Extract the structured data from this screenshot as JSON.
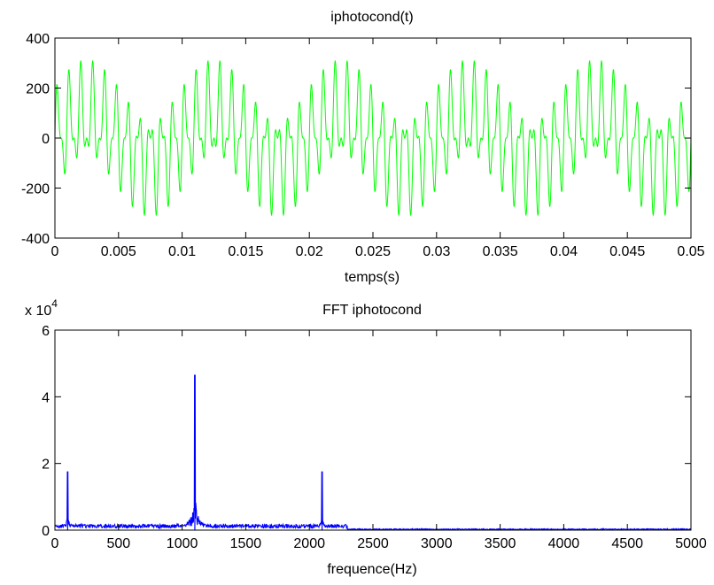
{
  "chart_data": [
    {
      "type": "line",
      "title": "iphotocond(t)",
      "xlabel": "temps(s)",
      "ylabel": "",
      "xlim": [
        0,
        0.05
      ],
      "ylim": [
        -400,
        400
      ],
      "xticks": [
        "0",
        "0.005",
        "0.01",
        "0.015",
        "0.02",
        "0.025",
        "0.03",
        "0.035",
        "0.04",
        "0.045",
        "0.05"
      ],
      "yticks": [
        "400",
        "200",
        "0",
        "-200",
        "-400"
      ],
      "line_color": "#00ff00",
      "grid": false,
      "series": [
        {
          "components": [
            {
              "frequency_hz": 100,
              "amplitude": 100
            },
            {
              "frequency_hz": 1100,
              "amplitude": 200
            },
            {
              "frequency_hz": 2100,
              "amplitude": 100
            }
          ],
          "x_range": [
            0,
            0.05
          ],
          "y_peak": 310
        }
      ]
    },
    {
      "type": "line",
      "title": "FFT iphotocond",
      "xlabel": "frequence(Hz)",
      "ylabel": "",
      "scale_label": "x 10",
      "scale_exponent": "4",
      "xlim": [
        0,
        5000
      ],
      "ylim": [
        0,
        6
      ],
      "xticks": [
        "0",
        "500",
        "1000",
        "1500",
        "2000",
        "2500",
        "3000",
        "3500",
        "4000",
        "4500",
        "5000"
      ],
      "yticks": [
        "6",
        "4",
        "2",
        "0"
      ],
      "line_color": "#0000ff",
      "grid": false,
      "series": [
        {
          "peaks": [
            {
              "x": 100,
              "y": 1.75
            },
            {
              "x": 1100,
              "y": 4.65
            },
            {
              "x": 2100,
              "y": 1.75
            }
          ]
        }
      ]
    }
  ]
}
